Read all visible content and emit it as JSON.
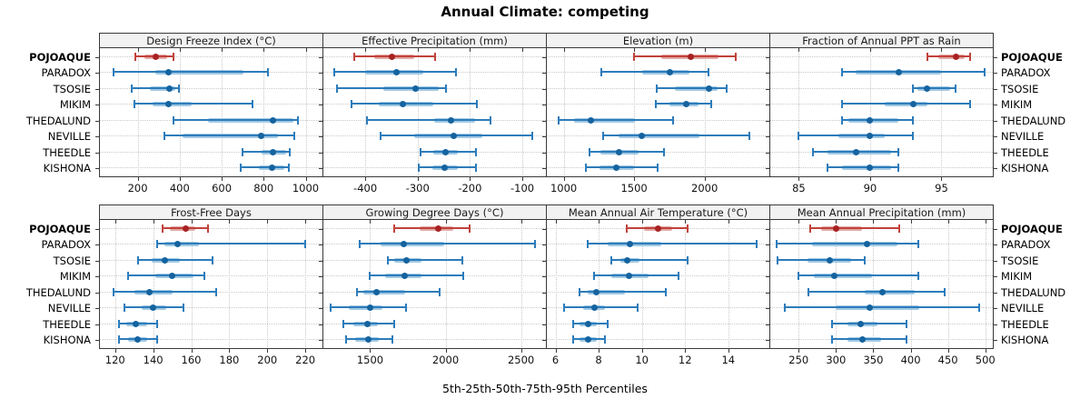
{
  "title": "Annual Climate: competing",
  "caption": "5th-25th-50th-75th-95th Percentiles",
  "sites": [
    "POJOAQUE",
    "PARADOX",
    "TSOSIE",
    "MIKIM",
    "THEDALUND",
    "NEVILLE",
    "THEEDLE",
    "KISHONA"
  ],
  "highlight_site": "POJOAQUE",
  "colors": {
    "highlight_dot": "#a82222",
    "highlight_line": "#c2423c",
    "highlight_band": "#e2aaa6",
    "normal_dot": "#15639f",
    "normal_line": "#2c7cbb",
    "normal_band": "#a2c9e3",
    "grid": "#c9c9c9",
    "header_bg": "#f2f2f2",
    "border": "#3a3a3a"
  },
  "chart_data": [
    {
      "type": "dotplot-percentiles",
      "title": "Design Freeze Index (°C)",
      "percentile_levels": [
        5,
        25,
        50,
        75,
        95
      ],
      "xlim": [
        20,
        1080
      ],
      "ticks": [
        200,
        400,
        600,
        800,
        1000
      ],
      "values": {
        "POJOAQUE": [
          190,
          230,
          285,
          340,
          370
        ],
        "PARADOX": [
          85,
          285,
          345,
          705,
          820
        ],
        "TSOSIE": [
          170,
          260,
          350,
          378,
          398
        ],
        "MIKIM": [
          185,
          272,
          348,
          458,
          745
        ],
        "THEDALUND": [
          372,
          535,
          845,
          942,
          962
        ],
        "NEVILLE": [
          328,
          412,
          788,
          868,
          948
        ],
        "THEEDLE": [
          700,
          788,
          845,
          905,
          925
        ],
        "KISHONA": [
          690,
          778,
          840,
          898,
          918
        ]
      }
    },
    {
      "type": "dotplot-percentiles",
      "title": "Effective Precipitation (mm)",
      "percentile_levels": [
        5,
        25,
        50,
        75,
        95
      ],
      "xlim": [
        -480,
        -55
      ],
      "ticks": [
        -400,
        -300,
        -200,
        -100
      ],
      "values": {
        "POJOAQUE": [
          -421,
          -383,
          -349,
          -307,
          -266
        ],
        "PARADOX": [
          -459,
          -400,
          -341,
          -290,
          -226
        ],
        "TSOSIE": [
          -454,
          -366,
          -304,
          -259,
          -246
        ],
        "MIKIM": [
          -426,
          -374,
          -329,
          -270,
          -186
        ],
        "THEDALUND": [
          -396,
          -269,
          -236,
          -190,
          -161
        ],
        "NEVILLE": [
          -371,
          -306,
          -231,
          -176,
          -81
        ],
        "THEEDLE": [
          -295,
          -270,
          -246,
          -224,
          -189
        ],
        "KISHONA": [
          -298,
          -271,
          -248,
          -223,
          -188
        ]
      }
    },
    {
      "type": "dotplot-percentiles",
      "title": "Elevation (m)",
      "percentile_levels": [
        5,
        25,
        50,
        75,
        95
      ],
      "xlim": [
        880,
        2460
      ],
      "ticks": [
        1000,
        1500,
        2000
      ],
      "values": {
        "POJOAQUE": [
          1498,
          1690,
          1905,
          2098,
          2222
        ],
        "PARADOX": [
          1270,
          1558,
          1754,
          1890,
          2030
        ],
        "TSOSIE": [
          1663,
          1788,
          2028,
          2090,
          2155
        ],
        "MIKIM": [
          1655,
          1750,
          1868,
          1958,
          2050
        ],
        "THEDALUND": [
          963,
          1075,
          1190,
          1508,
          1775
        ],
        "NEVILLE": [
          1280,
          1390,
          1554,
          1963,
          2320
        ],
        "THEEDLE": [
          1185,
          1260,
          1390,
          1530,
          1710
        ],
        "KISHONA": [
          1155,
          1254,
          1374,
          1500,
          1668
        ]
      }
    },
    {
      "type": "dotplot-percentiles",
      "title": "Fraction of Annual PPT as Rain",
      "percentile_levels": [
        5,
        25,
        50,
        75,
        95
      ],
      "xlim": [
        83,
        98.6
      ],
      "ticks": [
        85,
        90,
        95
      ],
      "values": {
        "POJOAQUE": [
          94,
          94.8,
          96,
          96.6,
          97
        ],
        "PARADOX": [
          88,
          89,
          92,
          95,
          98
        ],
        "TSOSIE": [
          93,
          93.3,
          94,
          95.6,
          96
        ],
        "MIKIM": [
          88,
          91,
          93,
          94,
          97
        ],
        "THEDALUND": [
          88,
          88.5,
          90,
          92,
          93
        ],
        "NEVILLE": [
          85,
          87.8,
          90,
          91,
          93
        ],
        "THEEDLE": [
          86,
          87,
          89,
          91.5,
          92
        ],
        "KISHONA": [
          87,
          88,
          90,
          91.5,
          92
        ]
      }
    },
    {
      "type": "dotplot-percentiles",
      "title": "Frost-Free Days",
      "percentile_levels": [
        5,
        25,
        50,
        75,
        95
      ],
      "xlim": [
        112,
        229
      ],
      "ticks": [
        120,
        140,
        160,
        180,
        200,
        220
      ],
      "values": {
        "POJOAQUE": [
          145,
          149,
          157,
          162,
          169
        ],
        "PARADOX": [
          142,
          146,
          153,
          164,
          220
        ],
        "TSOSIE": [
          132,
          139,
          146,
          154,
          171
        ],
        "MIKIM": [
          127,
          141,
          150,
          161,
          167
        ],
        "THEDALUND": [
          119,
          130,
          138,
          150,
          173
        ],
        "NEVILLE": [
          125,
          134,
          140,
          147,
          156
        ],
        "THEEDLE": [
          122,
          126,
          131,
          137,
          142
        ],
        "KISHONA": [
          122,
          127,
          132,
          137,
          142
        ]
      }
    },
    {
      "type": "dotplot-percentiles",
      "title": "Growing Degree Days (°C)",
      "percentile_levels": [
        5,
        25,
        50,
        75,
        95
      ],
      "xlim": [
        1190,
        2665
      ],
      "ticks": [
        1500,
        2000,
        2500
      ],
      "values": {
        "POJOAQUE": [
          1660,
          1830,
          1950,
          2050,
          2160
        ],
        "PARADOX": [
          1430,
          1570,
          1720,
          1990,
          2590
        ],
        "TSOSIE": [
          1620,
          1662,
          1740,
          1840,
          2110
        ],
        "MIKIM": [
          1500,
          1600,
          1730,
          1840,
          2120
        ],
        "THEDALUND": [
          1410,
          1452,
          1540,
          1730,
          1960
        ],
        "NEVILLE": [
          1240,
          1360,
          1500,
          1580,
          1740
        ],
        "THEEDLE": [
          1320,
          1390,
          1480,
          1550,
          1660
        ],
        "KISHONA": [
          1340,
          1400,
          1490,
          1558,
          1650
        ]
      }
    },
    {
      "type": "dotplot-percentiles",
      "title": "Mean Annual Air Temperature (°C)",
      "percentile_levels": [
        5,
        25,
        50,
        75,
        95
      ],
      "xlim": [
        5.6,
        15.9
      ],
      "ticks": [
        6,
        8,
        10,
        12,
        14
      ],
      "values": {
        "POJOAQUE": [
          9.3,
          10.1,
          10.75,
          11.4,
          12.1
        ],
        "PARADOX": [
          7.5,
          8.4,
          9.45,
          10.9,
          15.3
        ],
        "TSOSIE": [
          8.6,
          9.0,
          9.3,
          9.9,
          12.1
        ],
        "MIKIM": [
          7.8,
          8.6,
          9.4,
          10.3,
          11.7
        ],
        "THEDALUND": [
          7.1,
          7.5,
          7.9,
          9.2,
          11.1
        ],
        "NEVILLE": [
          6.4,
          7.3,
          7.8,
          8.3,
          9.8
        ],
        "THEEDLE": [
          6.8,
          7.1,
          7.5,
          7.9,
          8.4
        ],
        "KISHONA": [
          6.8,
          7.1,
          7.5,
          7.9,
          8.3
        ]
      }
    },
    {
      "type": "dotplot-percentiles",
      "title": "Mean Annual Precipitation (mm)",
      "percentile_levels": [
        5,
        25,
        50,
        75,
        95
      ],
      "xlim": [
        212,
        510
      ],
      "ticks": [
        250,
        300,
        350,
        400,
        450,
        500
      ],
      "values": {
        "POJOAQUE": [
          265,
          280,
          300,
          335,
          385
        ],
        "PARADOX": [
          220,
          268,
          341,
          382,
          410
        ],
        "TSOSIE": [
          222,
          262,
          292,
          320,
          338
        ],
        "MIKIM": [
          250,
          270,
          298,
          348,
          410
        ],
        "THEDALUND": [
          263,
          338,
          362,
          405,
          445
        ],
        "NEVILLE": [
          232,
          300,
          345,
          412,
          492
        ],
        "THEEDLE": [
          295,
          315,
          333,
          355,
          395
        ],
        "KISHONA": [
          295,
          315,
          335,
          360,
          395
        ]
      }
    }
  ]
}
